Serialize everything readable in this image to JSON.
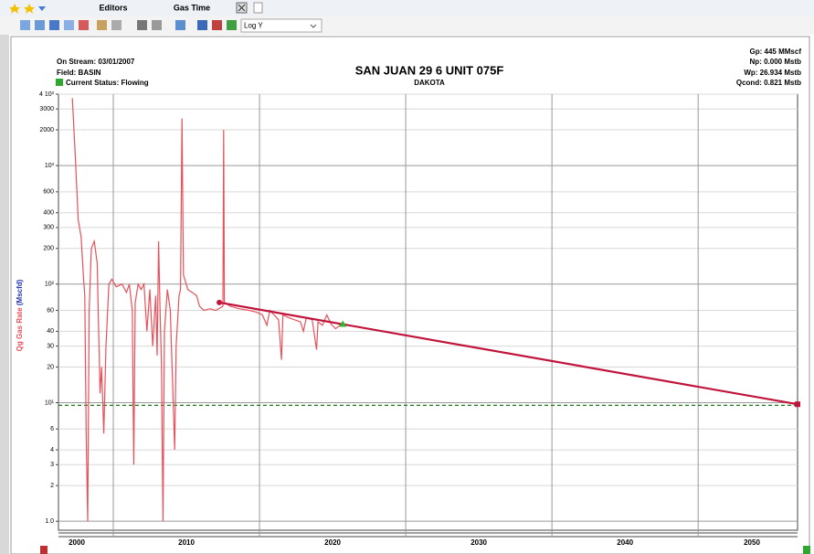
{
  "tabs": [
    "Editors",
    "Gas Time"
  ],
  "toolbar": {
    "scale_select": "Log Y"
  },
  "chart_data": {
    "type": "line",
    "title": "SAN JUAN 29 6 UNIT 075F",
    "subtitle": "DAKOTA",
    "info_left": [
      "On Stream: 03/01/2007",
      "Field: BASIN",
      "Current Status: Flowing"
    ],
    "info_right": [
      "Gp: 445 MMscf",
      "Np: 0.000 Mstb",
      "Wp: 26.934 Mstb",
      "Qcond: 0.821 Mstb"
    ],
    "ylabel": [
      "Qg Gas Rate",
      "(Mscfd)"
    ],
    "ylog": true,
    "grid": true,
    "xlim": [
      2001.25,
      2051.8
    ],
    "ylim": [
      0.84,
      4000
    ],
    "xticks": [
      2000,
      2010,
      2020,
      2030,
      2040,
      2050
    ],
    "xgrid": [
      2005,
      2015,
      2025,
      2035,
      2045
    ],
    "yticks": [
      {
        "value": 1,
        "label": "1.0"
      },
      2,
      3,
      4,
      6,
      {
        "value": 10,
        "label": "10¹"
      },
      20,
      30,
      40,
      60,
      {
        "value": 100,
        "label": "10²"
      },
      200,
      300,
      400,
      600,
      {
        "value": 1000,
        "label": "10³"
      },
      2000,
      3000,
      {
        "value": 4000,
        "label": "4 10³"
      }
    ],
    "series": [
      {
        "color": "#e8505a",
        "x": [
          2002.2,
          2002.4,
          2002.6,
          2002.8,
          2002.95,
          2003.05,
          2003.15,
          2003.25,
          2003.35,
          2003.5,
          2003.7,
          2003.9,
          2004.0,
          2004.1,
          2004.2,
          2004.35,
          2004.5,
          2004.7,
          2004.9,
          2005.2,
          2005.6,
          2005.9,
          2006.1,
          2006.3,
          2006.4,
          2006.5,
          2006.7,
          2006.9,
          2007.1,
          2007.3,
          2007.5,
          2007.7,
          2007.9,
          2008.0,
          2008.1,
          2008.2,
          2008.3,
          2008.4,
          2008.5,
          2008.7,
          2008.9,
          2009.1,
          2009.2,
          2009.3,
          2009.5,
          2009.6,
          2009.7,
          2009.8,
          2010.1,
          2010.4,
          2010.7,
          2010.9,
          2011.2,
          2011.6,
          2012.0,
          2012.5,
          2012.55,
          2012.6,
          2013.0,
          2013.6,
          2014.3,
          2014.8,
          2015.2,
          2015.5,
          2015.7,
          2016.0,
          2016.3,
          2016.5,
          2016.6,
          2017.0,
          2017.4,
          2017.8,
          2018.0,
          2018.2,
          2018.6,
          2018.9,
          2019.0,
          2019.3,
          2019.6,
          2019.9,
          2020.2,
          2020.5,
          2020.7
        ],
        "values": [
          3700,
          1200,
          350,
          250,
          120,
          80,
          5,
          1.0,
          60,
          200,
          230,
          150,
          40,
          12,
          20,
          5.5,
          30,
          100,
          110,
          95,
          100,
          85,
          100,
          60,
          3,
          70,
          100,
          90,
          100,
          40,
          90,
          30,
          80,
          25,
          230,
          60,
          20,
          1.0,
          40,
          90,
          60,
          10,
          4,
          30,
          80,
          90,
          2500,
          120,
          90,
          85,
          80,
          65,
          60,
          62,
          60,
          65,
          2000,
          70,
          65,
          62,
          60,
          58,
          55,
          45,
          60,
          55,
          50,
          23,
          55,
          52,
          50,
          48,
          40,
          52,
          50,
          28,
          48,
          45,
          55,
          46,
          42,
          45,
          46
        ]
      },
      {
        "color": "#c0143c",
        "x": [
          2012.25,
          2051.8
        ],
        "values": [
          70,
          9.7
        ]
      }
    ],
    "forecast_marker": {
      "x": 2020.7,
      "value": 46,
      "color": "#2eb82e"
    },
    "economic_limit": 9.5,
    "economic_limit_color": "#1a7a1a"
  }
}
